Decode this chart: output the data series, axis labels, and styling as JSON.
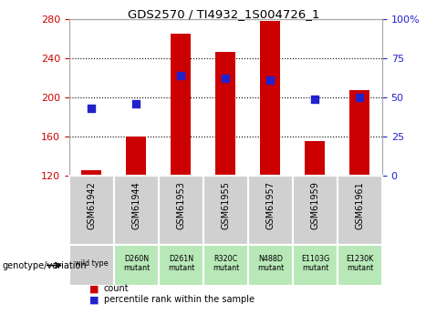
{
  "title": "GDS2570 / TI4932_1S004726_1",
  "categories": [
    "GSM61942",
    "GSM61944",
    "GSM61953",
    "GSM61955",
    "GSM61957",
    "GSM61959",
    "GSM61961"
  ],
  "genotype_labels": [
    "wild type",
    "D260N\nmutant",
    "D261N\nmutant",
    "R320C\nmutant",
    "N488D\nmutant",
    "E1103G\nmutant",
    "E1230K\nmutant"
  ],
  "count_values": [
    126,
    160,
    265,
    246,
    278,
    155,
    207
  ],
  "percentile_values": [
    43,
    46,
    64,
    62,
    61,
    49,
    50
  ],
  "ylim_left": [
    120,
    280
  ],
  "ylim_right": [
    0,
    100
  ],
  "yticks_left": [
    120,
    160,
    200,
    240,
    280
  ],
  "yticks_right": [
    0,
    25,
    50,
    75,
    100
  ],
  "ytick_labels_right": [
    "0",
    "25",
    "50",
    "75",
    "100%"
  ],
  "bar_color": "#CC0000",
  "dot_color": "#2222CC",
  "bar_width": 0.45,
  "background_color": "#ffffff",
  "plot_bg_color": "#ffffff",
  "left_tick_color": "#CC0000",
  "right_tick_color": "#2222CC",
  "genotype_bg_wild": "#d0d0d0",
  "genotype_bg_mutant": "#b8e8b8",
  "gsm_bg": "#d0d0d0",
  "legend_count_label": "count",
  "legend_percentile_label": "percentile rank within the sample",
  "genotype_header": "genotype/variation"
}
